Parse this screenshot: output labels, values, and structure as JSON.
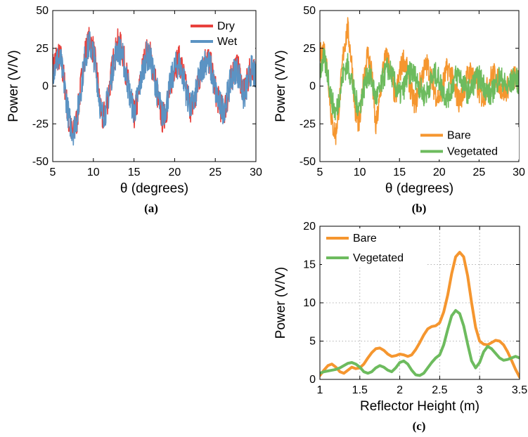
{
  "chart_data": [
    {
      "panel_label": "(a)",
      "type": "line",
      "xlabel": "θ (degrees)",
      "ylabel": "Power (V/V)",
      "xlim": [
        5,
        30
      ],
      "ylim": [
        -50,
        50
      ],
      "xticks": [
        5,
        10,
        15,
        20,
        25,
        30
      ],
      "yticks": [
        -50,
        -25,
        0,
        25,
        50
      ],
      "legend_position": "top-right",
      "grid": false,
      "series": [
        {
          "name": "Dry",
          "color": "#e8413d",
          "x": [
            5,
            5.5,
            6,
            6.5,
            7,
            7.5,
            8,
            8.5,
            9,
            9.5,
            10,
            10.5,
            11,
            11.5,
            12,
            12.5,
            13,
            13.5,
            14,
            14.5,
            15,
            15.5,
            16,
            16.5,
            17,
            17.5,
            18,
            18.5,
            19,
            19.5,
            20,
            20.5,
            21,
            21.5,
            22,
            22.5,
            23,
            23.5,
            24,
            24.5,
            25,
            25.5,
            26,
            26.5,
            27,
            27.5,
            28,
            28.5,
            29,
            29.5,
            30
          ],
          "y": [
            12,
            20,
            18,
            0,
            -25,
            -33,
            -22,
            2,
            22,
            30,
            24,
            5,
            -22,
            -18,
            0,
            18,
            28,
            25,
            10,
            -5,
            -20,
            -8,
            10,
            22,
            20,
            8,
            -10,
            -22,
            -15,
            0,
            14,
            18,
            10,
            -5,
            -15,
            -10,
            4,
            15,
            20,
            12,
            -2,
            -12,
            -18,
            -8,
            6,
            14,
            8,
            -6,
            4,
            14,
            6
          ]
        },
        {
          "name": "Wet",
          "color": "#5b93c3",
          "x": [
            5,
            5.5,
            6,
            6.5,
            7,
            7.5,
            8,
            8.5,
            9,
            9.5,
            10,
            10.5,
            11,
            11.5,
            12,
            12.5,
            13,
            13.5,
            14,
            14.5,
            15,
            15.5,
            16,
            16.5,
            17,
            17.5,
            18,
            18.5,
            19,
            19.5,
            20,
            20.5,
            21,
            21.5,
            22,
            22.5,
            23,
            23.5,
            24,
            24.5,
            25,
            25.5,
            26,
            26.5,
            27,
            27.5,
            28,
            28.5,
            29,
            29.5,
            30
          ],
          "y": [
            10,
            18,
            16,
            -2,
            -22,
            -30,
            -20,
            0,
            20,
            28,
            22,
            3,
            -20,
            -16,
            -2,
            16,
            25,
            22,
            8,
            -6,
            -18,
            -6,
            8,
            20,
            18,
            6,
            -8,
            -20,
            -12,
            2,
            12,
            15,
            8,
            -6,
            -14,
            -8,
            5,
            14,
            18,
            10,
            -3,
            -12,
            -16,
            -6,
            5,
            12,
            6,
            -8,
            2,
            12,
            4
          ]
        }
      ]
    },
    {
      "panel_label": "(b)",
      "type": "line",
      "xlabel": "θ (degrees)",
      "ylabel": "Power (V/V)",
      "xlim": [
        5,
        30
      ],
      "ylim": [
        -50,
        50
      ],
      "xticks": [
        5,
        10,
        15,
        20,
        25,
        30
      ],
      "yticks": [
        -50,
        -25,
        0,
        25,
        50
      ],
      "legend_position": "bottom-right",
      "grid": false,
      "series": [
        {
          "name": "Bare",
          "color": "#f5962f",
          "x": [
            5,
            5.5,
            6,
            6.5,
            7,
            7.5,
            8,
            8.5,
            9,
            9.5,
            10,
            10.5,
            11,
            11.5,
            12,
            12.5,
            13,
            13.5,
            14,
            14.5,
            15,
            15.5,
            16,
            16.5,
            17,
            17.5,
            18,
            18.5,
            19,
            19.5,
            20,
            20.5,
            21,
            21.5,
            22,
            22.5,
            23,
            23.5,
            24,
            24.5,
            25,
            25.5,
            26,
            26.5,
            27,
            27.5,
            28,
            28.5,
            29,
            29.5,
            30
          ],
          "y": [
            20,
            25,
            10,
            -25,
            -32,
            -8,
            25,
            38,
            15,
            -20,
            -25,
            5,
            22,
            10,
            -28,
            -10,
            15,
            20,
            5,
            -8,
            8,
            18,
            10,
            -5,
            -12,
            0,
            10,
            14,
            5,
            -5,
            -8,
            2,
            12,
            8,
            -4,
            -10,
            -4,
            6,
            10,
            4,
            -4,
            -8,
            -2,
            6,
            8,
            2,
            -4,
            -2,
            4,
            6,
            2
          ]
        },
        {
          "name": "Vegetated",
          "color": "#6dbb5e",
          "x": [
            5,
            5.5,
            6,
            6.5,
            7,
            7.5,
            8,
            8.5,
            9,
            9.5,
            10,
            10.5,
            11,
            11.5,
            12,
            12.5,
            13,
            13.5,
            14,
            14.5,
            15,
            15.5,
            16,
            16.5,
            17,
            17.5,
            18,
            18.5,
            19,
            19.5,
            20,
            20.5,
            21,
            21.5,
            22,
            22.5,
            23,
            23.5,
            24,
            24.5,
            25,
            25.5,
            26,
            26.5,
            27,
            27.5,
            28,
            28.5,
            29,
            29.5,
            30
          ],
          "y": [
            10,
            18,
            8,
            -10,
            -18,
            -5,
            10,
            14,
            4,
            -10,
            -14,
            -2,
            8,
            4,
            -8,
            -4,
            6,
            12,
            8,
            0,
            -6,
            -2,
            6,
            10,
            6,
            0,
            -6,
            -4,
            4,
            8,
            4,
            -4,
            -8,
            -2,
            6,
            8,
            2,
            -4,
            -2,
            4,
            6,
            2,
            -4,
            -6,
            0,
            6,
            4,
            -2,
            2,
            6,
            2
          ]
        }
      ]
    },
    {
      "panel_label": "(c)",
      "type": "line",
      "xlabel": "Reflector Height (m)",
      "ylabel": "Power (V/V)",
      "xlim": [
        1,
        3.5
      ],
      "ylim": [
        0,
        20
      ],
      "xticks": [
        1,
        1.5,
        2,
        2.5,
        3,
        3.5
      ],
      "yticks": [
        0,
        5,
        10,
        15,
        20
      ],
      "legend_position": "top-left",
      "grid": true,
      "series": [
        {
          "name": "Bare",
          "color": "#f5962f",
          "x": [
            1.0,
            1.05,
            1.1,
            1.15,
            1.2,
            1.25,
            1.3,
            1.35,
            1.4,
            1.45,
            1.5,
            1.55,
            1.6,
            1.65,
            1.7,
            1.75,
            1.8,
            1.85,
            1.9,
            1.95,
            2.0,
            2.05,
            2.1,
            2.15,
            2.2,
            2.25,
            2.3,
            2.35,
            2.4,
            2.45,
            2.5,
            2.55,
            2.6,
            2.65,
            2.7,
            2.75,
            2.8,
            2.85,
            2.9,
            2.95,
            3.0,
            3.05,
            3.1,
            3.15,
            3.2,
            3.25,
            3.3,
            3.35,
            3.4,
            3.45,
            3.5
          ],
          "y": [
            0.5,
            1.2,
            1.8,
            2.0,
            1.6,
            1.0,
            0.8,
            1.2,
            1.6,
            1.4,
            1.5,
            2.0,
            2.8,
            3.5,
            4.0,
            4.1,
            3.8,
            3.3,
            3.0,
            3.1,
            3.3,
            3.2,
            3.0,
            3.2,
            3.9,
            4.8,
            5.8,
            6.6,
            6.9,
            7.0,
            7.4,
            8.8,
            11.0,
            13.8,
            16.0,
            16.6,
            16.0,
            13.5,
            10.0,
            6.8,
            5.0,
            4.6,
            4.5,
            4.8,
            5.1,
            5.0,
            4.5,
            3.6,
            2.5,
            1.3,
            0.3
          ]
        },
        {
          "name": "Vegetated",
          "color": "#6dbb5e",
          "x": [
            1.0,
            1.05,
            1.1,
            1.15,
            1.2,
            1.25,
            1.3,
            1.35,
            1.4,
            1.45,
            1.5,
            1.55,
            1.6,
            1.65,
            1.7,
            1.75,
            1.8,
            1.85,
            1.9,
            1.95,
            2.0,
            2.05,
            2.1,
            2.15,
            2.2,
            2.25,
            2.3,
            2.35,
            2.4,
            2.45,
            2.5,
            2.55,
            2.6,
            2.65,
            2.7,
            2.75,
            2.8,
            2.85,
            2.9,
            2.95,
            3.0,
            3.05,
            3.1,
            3.15,
            3.2,
            3.25,
            3.3,
            3.35,
            3.4,
            3.45,
            3.5
          ],
          "y": [
            0.8,
            1.0,
            1.1,
            1.2,
            1.3,
            1.5,
            1.8,
            2.1,
            2.2,
            2.0,
            1.6,
            1.0,
            0.8,
            1.0,
            1.5,
            1.8,
            1.6,
            1.2,
            1.0,
            1.5,
            2.2,
            2.4,
            2.0,
            1.2,
            0.6,
            0.5,
            0.8,
            1.5,
            2.2,
            2.8,
            3.2,
            4.5,
            6.5,
            8.3,
            9.0,
            8.6,
            7.0,
            4.6,
            2.4,
            1.5,
            2.2,
            3.6,
            4.3,
            4.0,
            3.4,
            2.8,
            2.5,
            2.6,
            2.8,
            3.0,
            2.8
          ]
        }
      ]
    }
  ]
}
